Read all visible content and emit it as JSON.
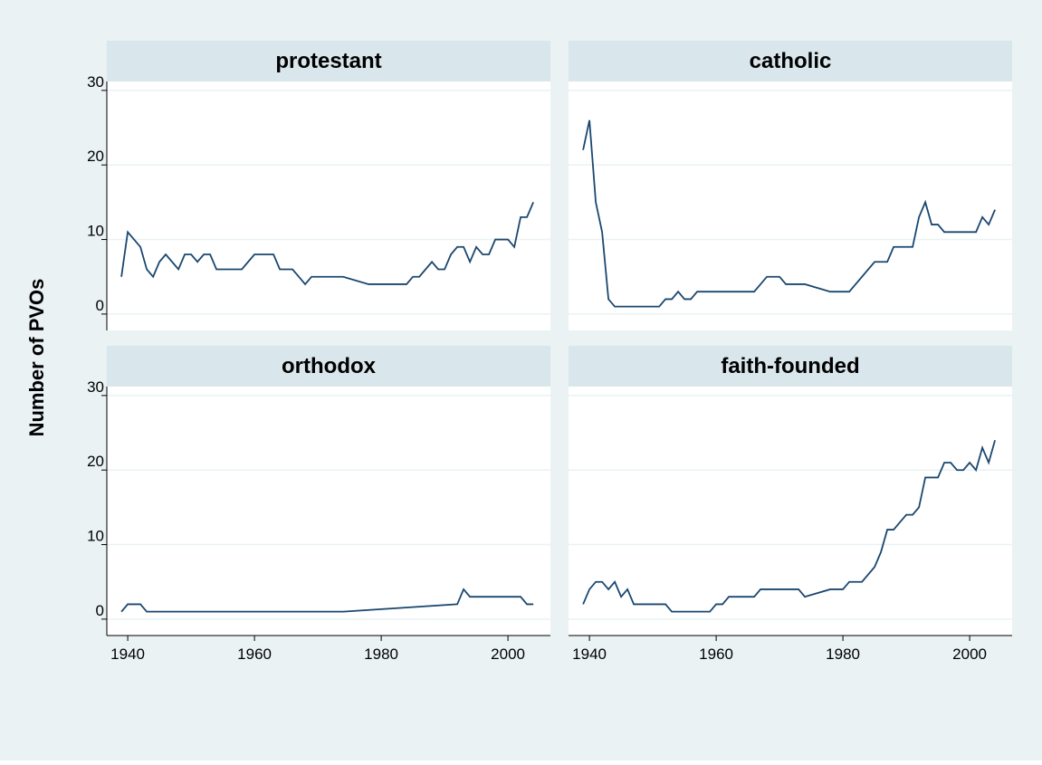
{
  "chart_data": {
    "type": "line",
    "ylabel": "Number of PVOs",
    "xlim": [
      1936.7,
      2006.7
    ],
    "xticks": [
      1940,
      1960,
      1980,
      2000
    ],
    "ylim": [
      -2.2,
      31.2
    ],
    "yticks": [
      0,
      10,
      20,
      30
    ],
    "grid": true,
    "series": [
      {
        "name": "protestant",
        "color": "#1a476f",
        "x": [
          1939,
          1940,
          1941,
          1942,
          1943,
          1944,
          1945,
          1946,
          1947,
          1948,
          1949,
          1950,
          1951,
          1952,
          1953,
          1954,
          1955,
          1956,
          1957,
          1958,
          1959,
          1960,
          1961,
          1962,
          1963,
          1964,
          1965,
          1966,
          1967,
          1968,
          1969,
          1970,
          1974,
          1978,
          1984,
          1985,
          1986,
          1987,
          1988,
          1989,
          1990,
          1991,
          1992,
          1993,
          1994,
          1995,
          1996,
          1997,
          1998,
          1999,
          2000,
          2001,
          2002,
          2003,
          2004
        ],
        "values": [
          5,
          11,
          10,
          9,
          6,
          5,
          7,
          8,
          7,
          6,
          8,
          8,
          7,
          8,
          8,
          6,
          6,
          6,
          6,
          6,
          7,
          8,
          8,
          8,
          8,
          6,
          6,
          6,
          5,
          4,
          5,
          5,
          5,
          4,
          4,
          5,
          5,
          6,
          7,
          6,
          6,
          8,
          9,
          9,
          7,
          9,
          8,
          8,
          10,
          10,
          10,
          9,
          13,
          13,
          15
        ]
      },
      {
        "name": "catholic",
        "color": "#1a476f",
        "x": [
          1939,
          1940,
          1941,
          1942,
          1943,
          1944,
          1951,
          1952,
          1953,
          1954,
          1955,
          1956,
          1957,
          1966,
          1967,
          1968,
          1969,
          1970,
          1971,
          1974,
          1978,
          1981,
          1985,
          1987,
          1988,
          1991,
          1992,
          1993,
          1994,
          1995,
          1996,
          2001,
          2002,
          2003,
          2004
        ],
        "values": [
          22,
          26,
          15,
          11,
          2,
          1,
          1,
          2,
          2,
          3,
          2,
          2,
          3,
          3,
          4,
          5,
          5,
          5,
          4,
          4,
          3,
          3,
          7,
          7,
          9,
          9,
          13,
          15,
          12,
          12,
          11,
          11,
          13,
          12,
          14
        ]
      },
      {
        "name": "orthodox",
        "color": "#1a476f",
        "x": [
          1939,
          1940,
          1942,
          1943,
          1974,
          1992,
          1993,
          1994,
          2002,
          2003,
          2004
        ],
        "values": [
          1,
          2,
          2,
          1,
          1,
          2,
          4,
          3,
          3,
          2,
          2
        ]
      },
      {
        "name": "faith-founded",
        "color": "#1a476f",
        "x": [
          1939,
          1940,
          1941,
          1942,
          1943,
          1944,
          1945,
          1946,
          1947,
          1952,
          1953,
          1959,
          1960,
          1961,
          1962,
          1966,
          1967,
          1973,
          1974,
          1978,
          1980,
          1981,
          1983,
          1985,
          1986,
          1987,
          1988,
          1989,
          1990,
          1991,
          1992,
          1993,
          1995,
          1996,
          1997,
          1998,
          1999,
          2000,
          2001,
          2002,
          2003,
          2004
        ],
        "values": [
          2,
          4,
          5,
          5,
          4,
          5,
          3,
          4,
          2,
          2,
          1,
          1,
          2,
          2,
          3,
          3,
          4,
          4,
          3,
          4,
          4,
          5,
          5,
          7,
          9,
          12,
          12,
          13,
          14,
          14,
          15,
          19,
          19,
          21,
          21,
          20,
          20,
          21,
          20,
          23,
          21,
          24
        ]
      }
    ]
  }
}
